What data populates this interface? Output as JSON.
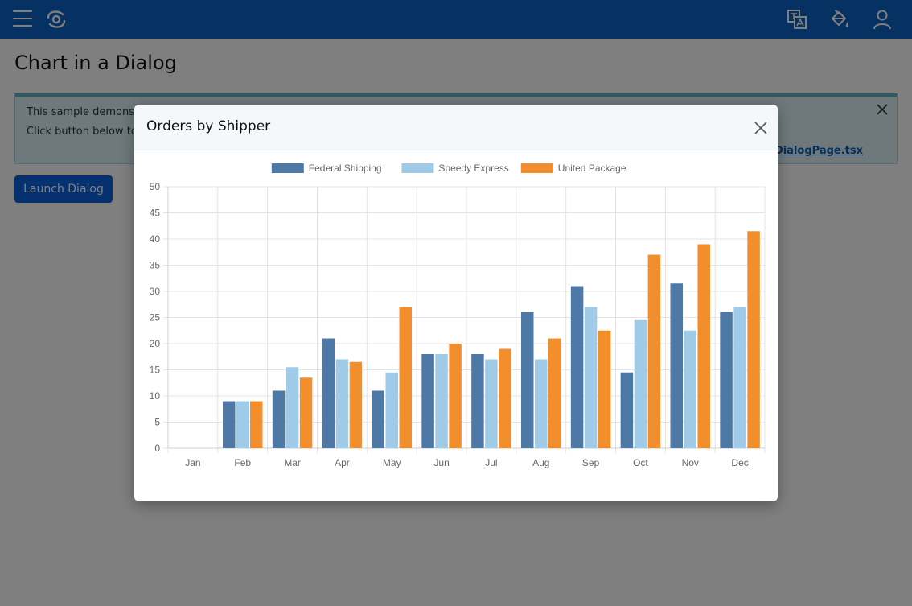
{
  "topbar": {
    "menu_icon": "hamburger-menu-icon",
    "logo_icon": "swirl-logo-icon",
    "icons": [
      "translate-icon",
      "paint-bucket-icon",
      "user-icon"
    ],
    "bg_color": "#0b62c6"
  },
  "page": {
    "title": "Chart in a Dialog",
    "info": {
      "line1": "This sample demons",
      "line2": "Click button below to",
      "link_text": "nDialogPage.tsx"
    },
    "launch_button": "Launch Dialog"
  },
  "dialog": {
    "title": "Orders by Shipper"
  },
  "chart_data": {
    "type": "bar",
    "categories": [
      "Jan",
      "Feb",
      "Mar",
      "Apr",
      "May",
      "Jun",
      "Jul",
      "Aug",
      "Sep",
      "Oct",
      "Nov",
      "Dec"
    ],
    "series": [
      {
        "name": "Federal Shipping",
        "color": "#4e79a7",
        "values": [
          0,
          9,
          11,
          21,
          11,
          18,
          18,
          26,
          31,
          14.5,
          31.5,
          26
        ]
      },
      {
        "name": "Speedy Express",
        "color": "#a0cbe8",
        "values": [
          0,
          9,
          15.5,
          17,
          14.5,
          18,
          17,
          17,
          27,
          24.5,
          22.5,
          27
        ]
      },
      {
        "name": "United Package",
        "color": "#f28e2b",
        "values": [
          0,
          9,
          13.5,
          16.5,
          27,
          20,
          19,
          21,
          22.5,
          37,
          39,
          41.5
        ]
      }
    ],
    "yticks": [
      "0",
      "5",
      "10",
      "15",
      "20",
      "25",
      "30",
      "35",
      "40",
      "45",
      "50"
    ],
    "ylim": [
      0,
      50
    ],
    "grid": true,
    "legend": "top-center"
  }
}
